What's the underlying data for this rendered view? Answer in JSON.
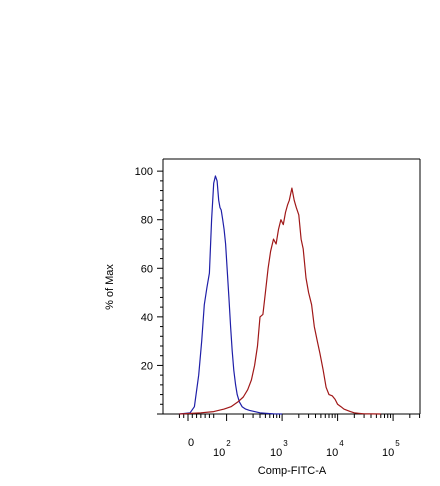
{
  "chart_data": {
    "type": "line",
    "title": "",
    "xlabel": "Comp-FITC-A",
    "ylabel": "% of Max",
    "x_scale": "biexponential",
    "xlim": [
      -30,
      300000
    ],
    "ylim": [
      0,
      105
    ],
    "yticks": [
      20,
      40,
      60,
      80,
      100
    ],
    "xticks": [
      {
        "value": 0,
        "label": "0",
        "exp": ""
      },
      {
        "value": 100,
        "label": "10",
        "exp": "2"
      },
      {
        "value": 1000,
        "label": "10",
        "exp": "3"
      },
      {
        "value": 10000,
        "label": "10",
        "exp": "4"
      },
      {
        "value": 100000,
        "label": "10",
        "exp": "5"
      }
    ],
    "series": [
      {
        "color": "#1f1fa8",
        "x": [
          -20,
          5,
          15,
          25,
          32,
          38,
          44,
          50,
          55,
          60,
          64,
          68,
          72,
          76,
          80,
          85,
          90,
          96,
          102,
          110,
          118,
          126,
          135,
          145,
          155,
          170,
          190,
          220,
          260,
          320,
          400,
          520,
          700,
          1000
        ],
        "y": [
          0,
          0.5,
          3,
          16,
          30,
          45,
          52,
          58,
          80,
          95,
          98,
          96,
          88,
          85,
          84,
          80,
          76,
          70,
          60,
          48,
          36,
          26,
          18,
          12,
          8,
          5,
          3,
          2,
          1.5,
          1,
          0.5,
          0.3,
          0.1,
          0
        ]
      },
      {
        "color": "#a01818",
        "x": [
          -20,
          30,
          60,
          90,
          120,
          160,
          200,
          240,
          280,
          320,
          360,
          400,
          450,
          500,
          560,
          620,
          700,
          780,
          860,
          950,
          1050,
          1150,
          1250,
          1350,
          1500,
          1650,
          1800,
          2000,
          2200,
          2400,
          2700,
          3000,
          3400,
          3800,
          4300,
          4800,
          5500,
          6200,
          7000,
          8000,
          9000,
          10000,
          11500,
          13000,
          15000,
          17000,
          20000,
          24000,
          30000,
          40000,
          60000
        ],
        "y": [
          0,
          0.5,
          1,
          2,
          3,
          5,
          7,
          10,
          14,
          20,
          28,
          40,
          41,
          50,
          60,
          67,
          72,
          70,
          76,
          80,
          78,
          83,
          86,
          88,
          93,
          88,
          85,
          82,
          72,
          68,
          56,
          50,
          45,
          36,
          30,
          25,
          18,
          11,
          8,
          7.5,
          6,
          4,
          3,
          2,
          1.5,
          1,
          0.5,
          0.3,
          0.1,
          0.05,
          0
        ]
      }
    ]
  }
}
